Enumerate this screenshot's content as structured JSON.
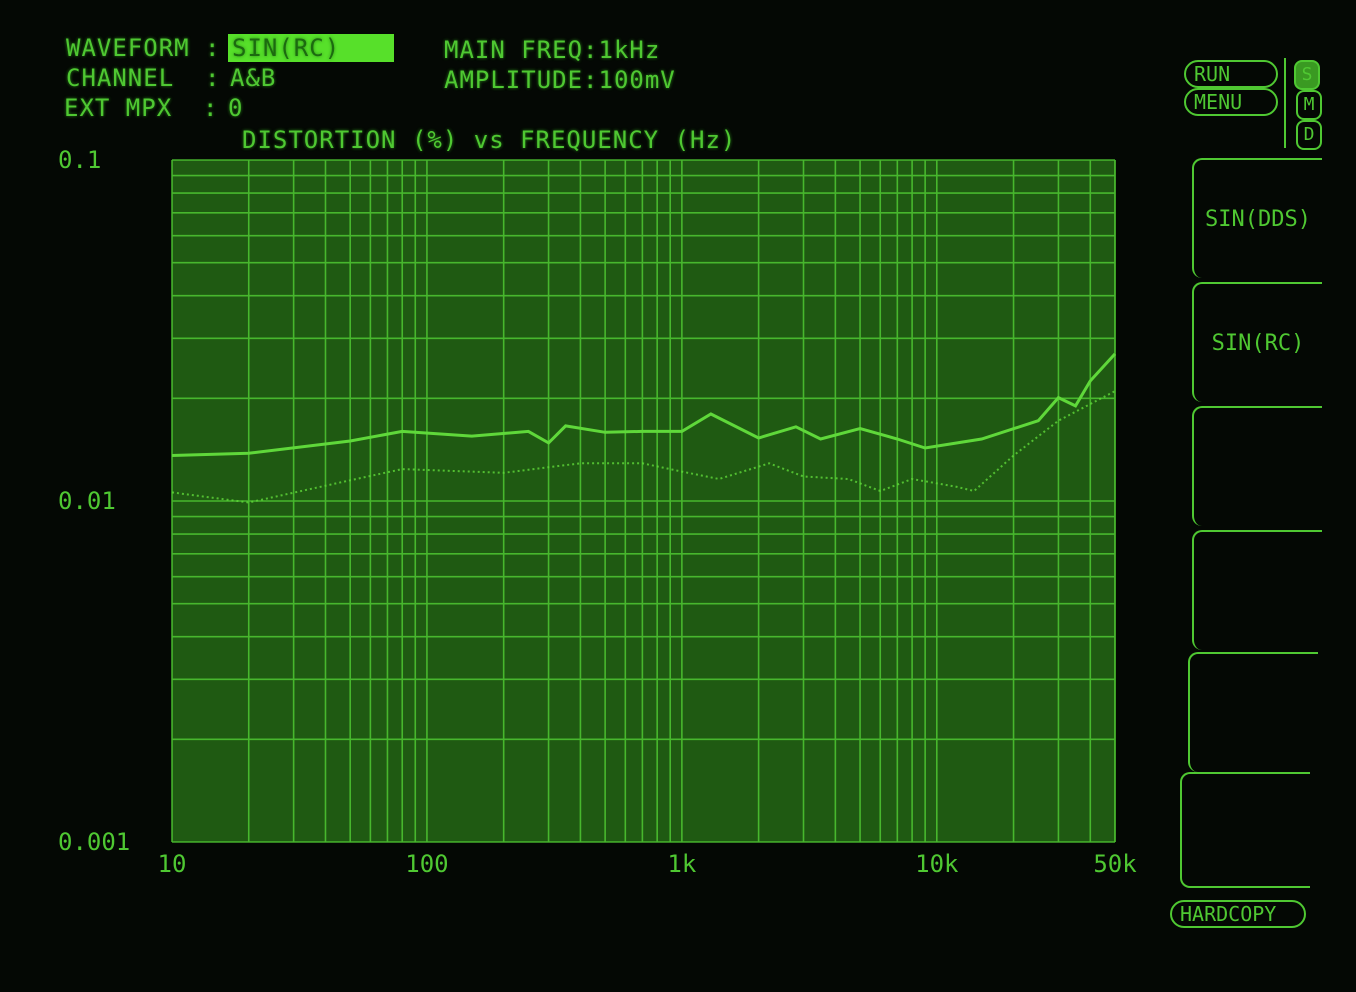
{
  "header": {
    "waveform_label": "WAVEFORM :",
    "waveform_value": "SIN(RC)",
    "channel_label": "CHANNEL  :",
    "channel_value": "A&B",
    "extmpx_label": "EXT MPX  :",
    "extmpx_value": "0",
    "main_freq": "MAIN FREQ:1kHz",
    "amplitude": "AMPLITUDE:100mV"
  },
  "controls": {
    "run": "RUN",
    "menu": "MENU",
    "modes": [
      "S",
      "M",
      "D"
    ],
    "active_mode": "S",
    "softkeys": [
      "SIN(DDS)",
      "SIN(RC)",
      "",
      "",
      "",
      ""
    ],
    "hardcopy": "HARDCOPY"
  },
  "colors": {
    "trace": "#5fd83a",
    "grid": "#4fc832",
    "plot_bg": "#1f5a12",
    "highlight": "#57e02a"
  },
  "chart_data": {
    "type": "line",
    "title": "DISTORTION (%) vs FREQUENCY (Hz)",
    "x_scale": "log",
    "y_scale": "log",
    "xlim": [
      10,
      50000
    ],
    "ylim": [
      0.001,
      0.1
    ],
    "x_ticks": [
      {
        "value": 10,
        "label": "10"
      },
      {
        "value": 100,
        "label": "100"
      },
      {
        "value": 1000,
        "label": "1k"
      },
      {
        "value": 10000,
        "label": "10k"
      },
      {
        "value": 50000,
        "label": "50k"
      }
    ],
    "y_ticks": [
      {
        "value": 0.1,
        "label": "0.1"
      },
      {
        "value": 0.01,
        "label": "0.01"
      },
      {
        "value": 0.001,
        "label": "0.001"
      }
    ],
    "grid": true,
    "series": [
      {
        "style": "solid",
        "points": [
          [
            10,
            0.0136
          ],
          [
            20,
            0.0138
          ],
          [
            50,
            0.015
          ],
          [
            80,
            0.016
          ],
          [
            150,
            0.0155
          ],
          [
            250,
            0.016
          ],
          [
            300,
            0.0148
          ],
          [
            350,
            0.0166
          ],
          [
            500,
            0.0159
          ],
          [
            700,
            0.016
          ],
          [
            1000,
            0.016
          ],
          [
            1300,
            0.018
          ],
          [
            2000,
            0.0153
          ],
          [
            2800,
            0.0165
          ],
          [
            3500,
            0.0152
          ],
          [
            5000,
            0.0163
          ],
          [
            7000,
            0.0152
          ],
          [
            9000,
            0.0143
          ],
          [
            15000,
            0.0152
          ],
          [
            25000,
            0.0172
          ],
          [
            30000,
            0.0201
          ],
          [
            35000,
            0.019
          ],
          [
            40000,
            0.0225
          ],
          [
            50000,
            0.027
          ]
        ]
      },
      {
        "style": "dotted",
        "points": [
          [
            10,
            0.0106
          ],
          [
            20,
            0.0099
          ],
          [
            50,
            0.0115
          ],
          [
            80,
            0.0124
          ],
          [
            200,
            0.0121
          ],
          [
            400,
            0.0129
          ],
          [
            700,
            0.0129
          ],
          [
            1000,
            0.0122
          ],
          [
            1400,
            0.0116
          ],
          [
            2200,
            0.0129
          ],
          [
            3000,
            0.0118
          ],
          [
            4500,
            0.0116
          ],
          [
            6000,
            0.0107
          ],
          [
            8000,
            0.0116
          ],
          [
            12000,
            0.011
          ],
          [
            14000,
            0.0107
          ],
          [
            20000,
            0.0136
          ],
          [
            30000,
            0.0172
          ],
          [
            50000,
            0.021
          ]
        ]
      }
    ]
  }
}
